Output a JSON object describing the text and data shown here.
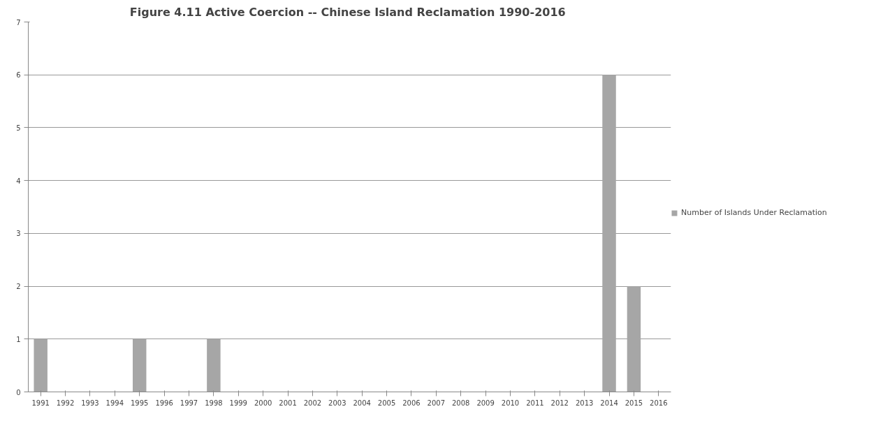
{
  "chart_data": {
    "type": "bar",
    "title": "Figure 4.11 Active Coercion  -- Chinese Island Reclamation 1990-2016",
    "categories": [
      "1991",
      "1992",
      "1993",
      "1994",
      "1995",
      "1996",
      "1997",
      "1998",
      "1999",
      "2000",
      "2001",
      "2002",
      "2003",
      "2004",
      "2005",
      "2006",
      "2007",
      "2008",
      "2009",
      "2010",
      "2011",
      "2012",
      "2013",
      "2014",
      "2015",
      "2016"
    ],
    "series": [
      {
        "name": "Number of Islands Under Reclamation",
        "color": "#a6a6a6",
        "values": [
          1,
          0,
          0,
          0,
          1,
          0,
          0,
          1,
          0,
          0,
          0,
          0,
          0,
          0,
          0,
          0,
          0,
          0,
          0,
          0,
          0,
          0,
          0,
          6,
          2,
          0
        ]
      }
    ],
    "ylim": [
      0,
      7
    ],
    "yticks": [
      0,
      1,
      2,
      3,
      4,
      5,
      6,
      7
    ],
    "grid": "y",
    "legend": "right"
  }
}
